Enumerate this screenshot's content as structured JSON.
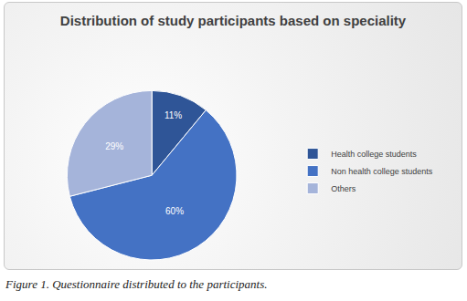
{
  "chart_data": {
    "type": "pie",
    "title": "Distribution of study participants based on speciality",
    "caption": "Figure 1. Questionnaire distributed to the participants.",
    "categories": [
      "Health college students",
      "Non health college students",
      "Others"
    ],
    "values": [
      11,
      60,
      29
    ],
    "value_labels": [
      "11%",
      "60%",
      "29%"
    ],
    "colors": [
      "#2f5597",
      "#4472c4",
      "#a5b4da"
    ],
    "data_labels": true,
    "legend": "right"
  }
}
